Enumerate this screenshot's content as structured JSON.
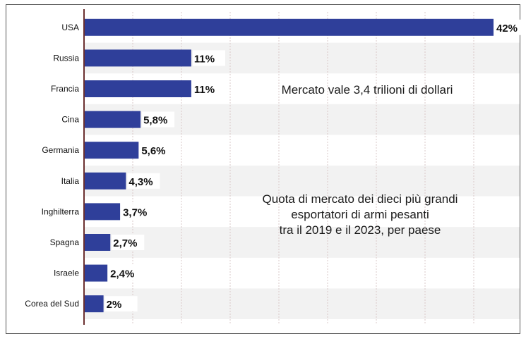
{
  "chart_data": {
    "type": "bar",
    "orientation": "horizontal",
    "categories": [
      "USA",
      "Russia",
      "Francia",
      "Cina",
      "Germania",
      "Italia",
      "Inghilterra",
      "Spagna",
      "Israele",
      "Corea del Sud"
    ],
    "values": [
      42,
      11,
      11,
      5.8,
      5.6,
      4.3,
      3.7,
      2.7,
      2.4,
      2
    ],
    "value_labels": [
      "42%",
      "11%",
      "11%",
      "5,8%",
      "5,6%",
      "4,3%",
      "3,7%",
      "2,7%",
      "2,4%",
      "2%"
    ],
    "xlim": [
      0,
      42
    ],
    "bar_color": "#2f3f9a",
    "stripe_color": "#f2f2f2",
    "grid": true,
    "annotations": [
      "Mercato vale 3,4 trilioni di dollari",
      "Quota di mercato dei dieci più grandi",
      "esportatori di armi pesanti",
      "tra il 2019 e il 2023, per paese"
    ]
  }
}
